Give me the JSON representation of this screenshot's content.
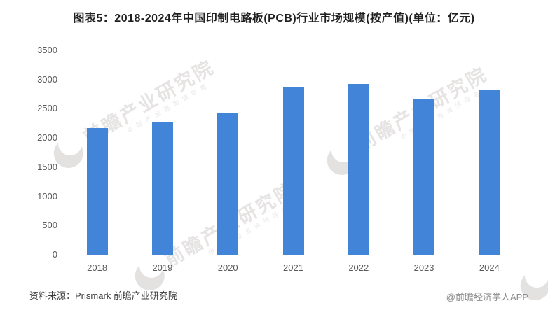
{
  "title": "图表5：2018-2024年中国印制电路板(PCB)行业市场规模(按产值)(单位：亿元)",
  "chart_data": {
    "type": "bar",
    "title": "图表5：2018-2024年中国印制电路板(PCB)行业市场规模(按产值)(单位：亿元)",
    "categories": [
      "2018",
      "2019",
      "2020",
      "2021",
      "2022",
      "2023",
      "2024"
    ],
    "values": [
      2170,
      2280,
      2420,
      2865,
      2925,
      2660,
      2815
    ],
    "xlabel": "",
    "ylabel": "",
    "unit": "亿元",
    "ylim": [
      0,
      3500
    ],
    "ytick_step": 500,
    "yticks": [
      0,
      500,
      1000,
      1500,
      2000,
      2500,
      3000,
      3500
    ],
    "grid": false,
    "legend": false,
    "bar_color": "#4284D8"
  },
  "footer": {
    "source": "资料来源：Prismark 前瞻产业研究院",
    "credit": "@前瞻经济学人APP"
  },
  "watermark": {
    "logo": "qianzhan-crescent-logo",
    "text": "前瞻产业研究院",
    "subtext": "中国产业咨询领导者"
  },
  "colors": {
    "bar": "#4284D8",
    "axis_label": "#595959",
    "axis_line": "#d6d6d6",
    "title_text": "#1f1f1f",
    "source_text": "#3d3d3d",
    "credit_text": "#8c8c8c",
    "watermark": "#c4bcbc"
  }
}
